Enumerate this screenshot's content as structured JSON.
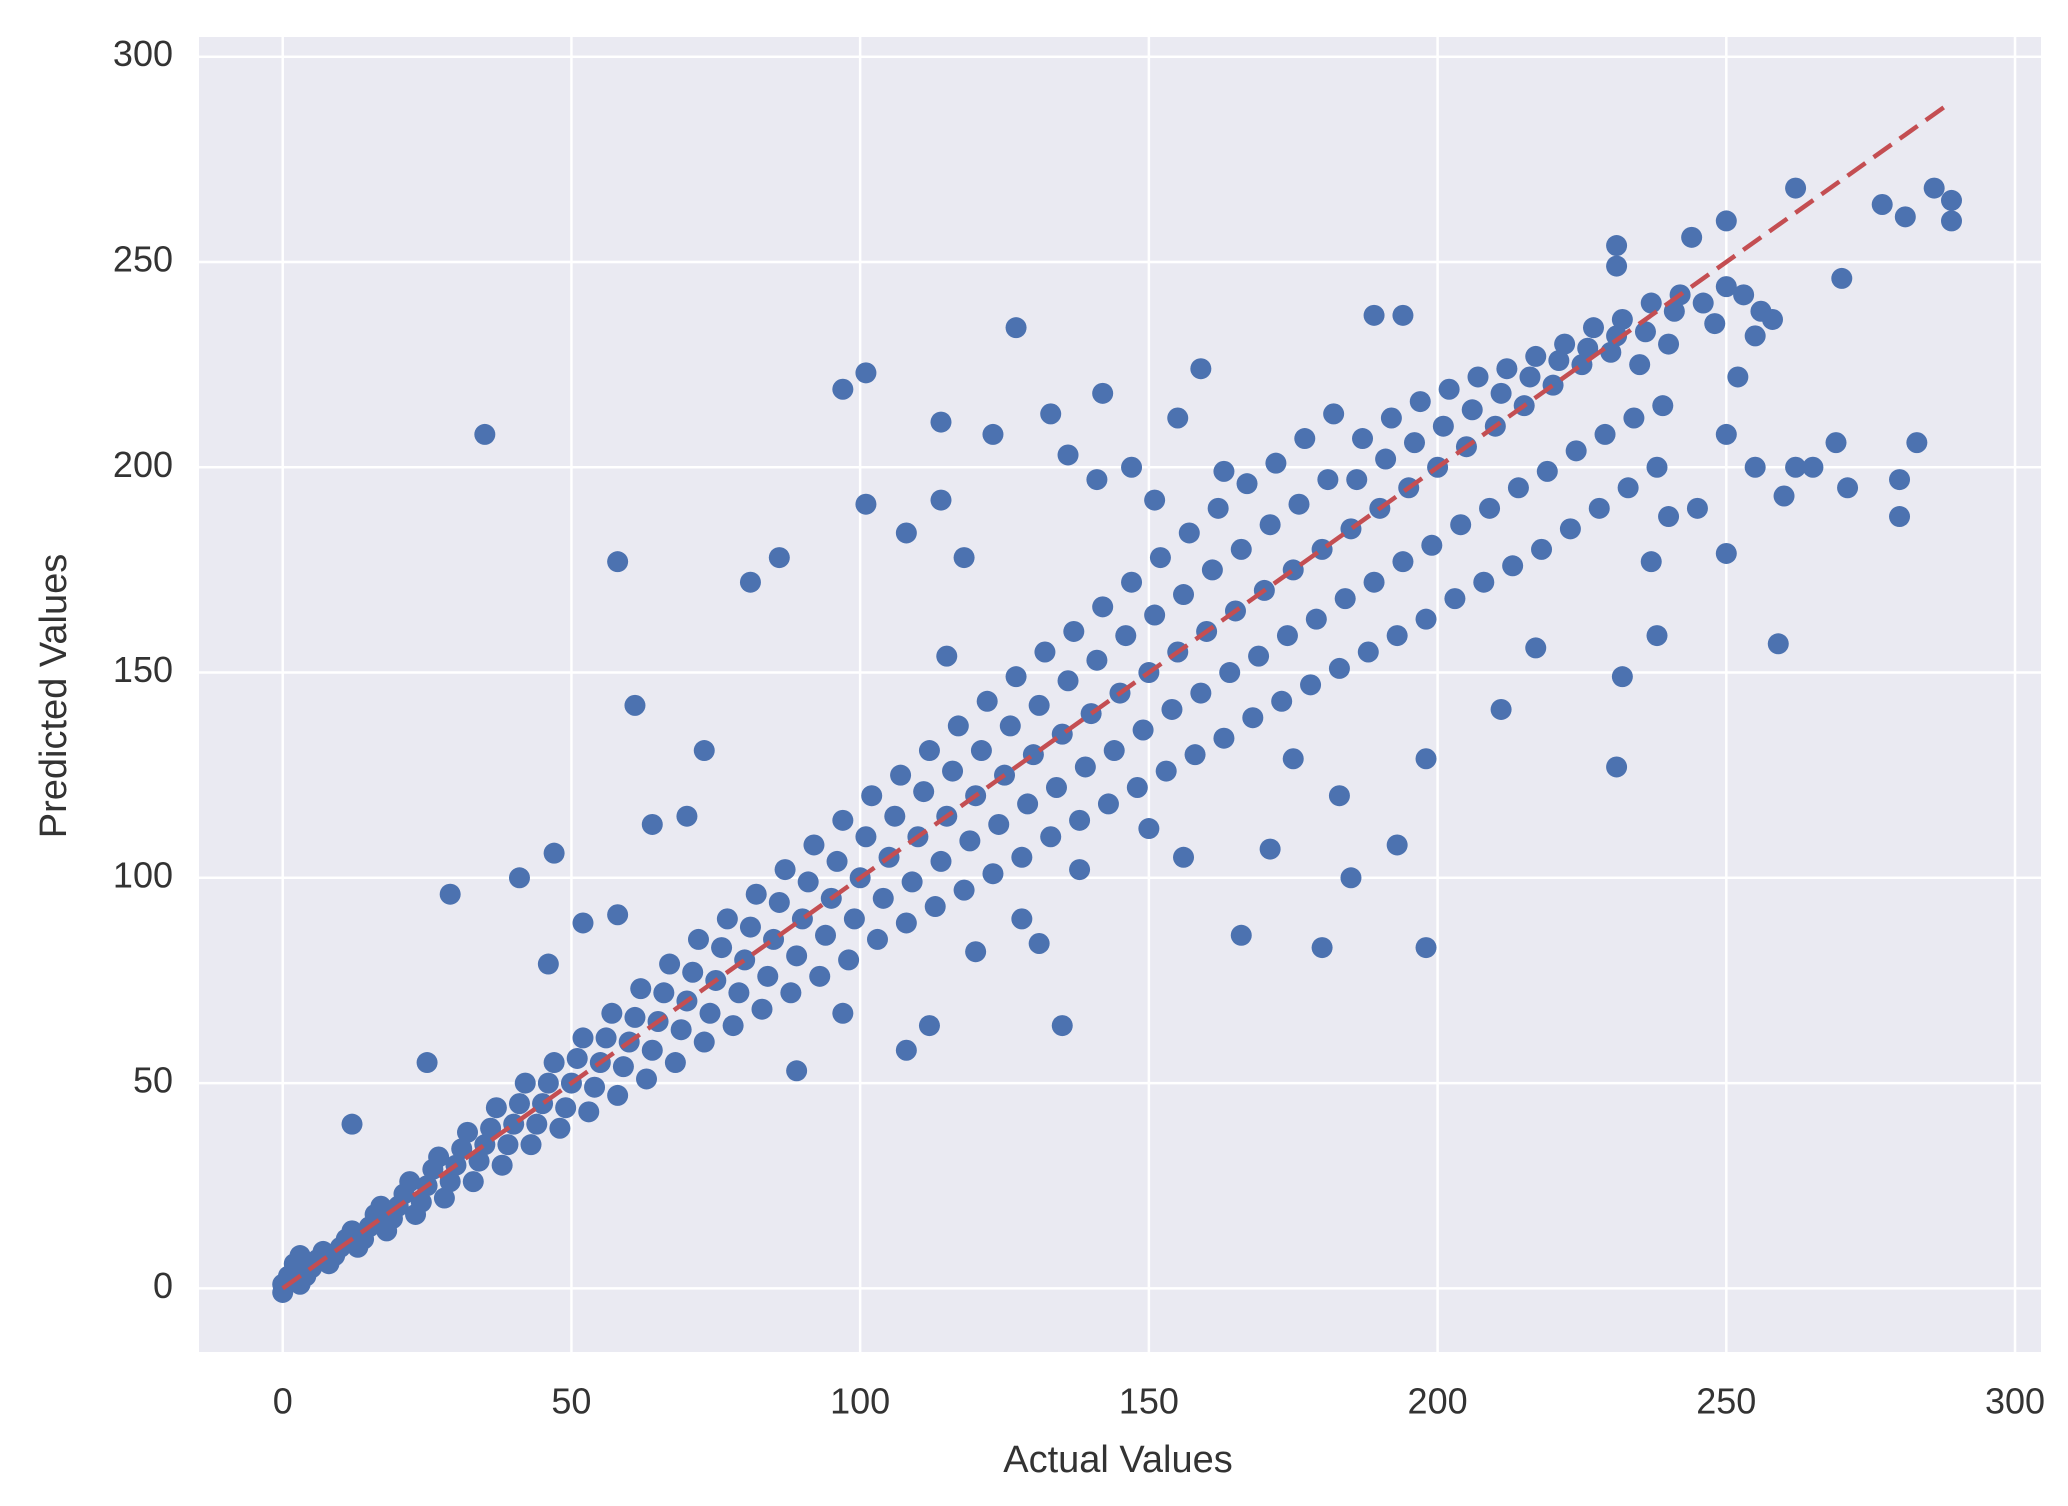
{
  "chart_data": {
    "type": "scatter",
    "xlabel": "Actual Values",
    "ylabel": "Predicted Values",
    "xlim": [
      -14.5,
      304.5
    ],
    "ylim": [
      -15.5,
      304.8
    ],
    "xticks": [
      0,
      50,
      100,
      150,
      200,
      250,
      300
    ],
    "yticks": [
      0,
      50,
      100,
      150,
      200,
      250,
      300
    ],
    "grid": true,
    "series": [
      {
        "color": "#4c72b0",
        "x": [
          0,
          1,
          0,
          2,
          3,
          3,
          4,
          5,
          6,
          7,
          8,
          9,
          10,
          11,
          12,
          13,
          14,
          15,
          16,
          17,
          18,
          19,
          20,
          21,
          22,
          23,
          24,
          25,
          26,
          27,
          28,
          29,
          30,
          31,
          32,
          33,
          34,
          35,
          36,
          37,
          38,
          39,
          40,
          41,
          42,
          43,
          44,
          45,
          46,
          47,
          48,
          49,
          50,
          51,
          52,
          53,
          54,
          55,
          56,
          57,
          58,
          59,
          60,
          61,
          62,
          63,
          64,
          65,
          66,
          67,
          68,
          69,
          70,
          71,
          72,
          73,
          74,
          75,
          76,
          77,
          78,
          79,
          80,
          81,
          82,
          83,
          84,
          85,
          86,
          87,
          88,
          89,
          90,
          91,
          92,
          93,
          94,
          95,
          96,
          97,
          98,
          99,
          100,
          101,
          102,
          103,
          104,
          105,
          106,
          107,
          108,
          109,
          110,
          111,
          112,
          113,
          114,
          115,
          116,
          117,
          118,
          119,
          120,
          121,
          122,
          123,
          124,
          125,
          126,
          127,
          128,
          129,
          130,
          131,
          132,
          133,
          134,
          135,
          136,
          137,
          138,
          139,
          140,
          141,
          142,
          143,
          144,
          145,
          146,
          147,
          148,
          149,
          150,
          151,
          152,
          153,
          154,
          155,
          156,
          157,
          158,
          159,
          160,
          161,
          162,
          163,
          164,
          165,
          166,
          167,
          168,
          169,
          170,
          171,
          172,
          173,
          174,
          175,
          176,
          177,
          178,
          179,
          180,
          181,
          182,
          183,
          184,
          185,
          186,
          187,
          188,
          189,
          190,
          191,
          192,
          193,
          194,
          195,
          196,
          197,
          198,
          199,
          200,
          201,
          202,
          203,
          204,
          205,
          206,
          207,
          208,
          209,
          210,
          211,
          212,
          213,
          214,
          215,
          216,
          217,
          218,
          219,
          220,
          221,
          222,
          223,
          224,
          225,
          226,
          227,
          228,
          229,
          230,
          231,
          232,
          233,
          234,
          235,
          236,
          237,
          238,
          239,
          240,
          241,
          242,
          246,
          250,
          253,
          256,
          258,
          255,
          248,
          252,
          250,
          255,
          262,
          265,
          260,
          245,
          240,
          35,
          58,
          61,
          29,
          41,
          47,
          73,
          86,
          81,
          97,
          101,
          101,
          127,
          114,
          123,
          133,
          142,
          159,
          189,
          194,
          231,
          231,
          244,
          250,
          262,
          277,
          286,
          289,
          289,
          281,
          270,
          283,
          280,
          280,
          271,
          269,
          259,
          250,
          231,
          232,
          238,
          237,
          211,
          217,
          198,
          198,
          180,
          166,
          185,
          193,
          135,
          131,
          108,
          112,
          89,
          171,
          156,
          150,
          183,
          175,
          138,
          128,
          120,
          97,
          70,
          64,
          52,
          58,
          46,
          25,
          12,
          118,
          115,
          108,
          136,
          141,
          147,
          151,
          163,
          155,
          114
        ],
        "y": [
          -1,
          3,
          1,
          6,
          8,
          1,
          3,
          5,
          7,
          9,
          6,
          8,
          10,
          12,
          14,
          10,
          12,
          15,
          18,
          20,
          14,
          17,
          20,
          23,
          26,
          18,
          21,
          25,
          29,
          32,
          22,
          26,
          30,
          34,
          38,
          26,
          31,
          35,
          39,
          44,
          30,
          35,
          40,
          45,
          50,
          35,
          40,
          45,
          50,
          55,
          39,
          44,
          50,
          56,
          61,
          43,
          49,
          55,
          61,
          67,
          47,
          54,
          60,
          66,
          73,
          51,
          58,
          65,
          72,
          79,
          55,
          63,
          70,
          77,
          85,
          60,
          67,
          75,
          83,
          90,
          64,
          72,
          80,
          88,
          96,
          68,
          76,
          85,
          94,
          102,
          72,
          81,
          90,
          99,
          108,
          76,
          86,
          95,
          104,
          114,
          80,
          90,
          100,
          110,
          120,
          85,
          95,
          105,
          115,
          125,
          89,
          99,
          110,
          121,
          131,
          93,
          104,
          115,
          126,
          137,
          97,
          109,
          120,
          131,
          143,
          101,
          113,
          125,
          137,
          149,
          105,
          118,
          130,
          142,
          155,
          110,
          122,
          135,
          148,
          160,
          114,
          127,
          140,
          153,
          166,
          118,
          131,
          145,
          159,
          172,
          122,
          136,
          150,
          164,
          178,
          126,
          141,
          155,
          169,
          184,
          130,
          145,
          160,
          175,
          190,
          134,
          150,
          165,
          180,
          196,
          139,
          154,
          170,
          186,
          201,
          143,
          159,
          175,
          191,
          207,
          147,
          163,
          180,
          197,
          213,
          151,
          168,
          185,
          197,
          207,
          155,
          172,
          190,
          202,
          212,
          159,
          177,
          195,
          206,
          216,
          163,
          181,
          200,
          210,
          219,
          168,
          186,
          205,
          214,
          222,
          172,
          190,
          210,
          218,
          224,
          176,
          195,
          215,
          222,
          227,
          180,
          199,
          220,
          226,
          230,
          185,
          204,
          225,
          229,
          234,
          190,
          208,
          228,
          232,
          236,
          195,
          212,
          225,
          233,
          240,
          200,
          215,
          230,
          238,
          242,
          240,
          244,
          242,
          238,
          236,
          232,
          235,
          222,
          208,
          200,
          200,
          200,
          193,
          190,
          188,
          208,
          177,
          142,
          96,
          100,
          106,
          131,
          178,
          172,
          219,
          223,
          191,
          234,
          211,
          208,
          213,
          218,
          224,
          237,
          237,
          254,
          249,
          256,
          260,
          268,
          264,
          268,
          265,
          260,
          261,
          246,
          206,
          197,
          188,
          195,
          206,
          157,
          179,
          127,
          149,
          159,
          177,
          141,
          156,
          129,
          83,
          83,
          86,
          100,
          108,
          64,
          84,
          58,
          64,
          53,
          107,
          105,
          112,
          120,
          129,
          102,
          90,
          82,
          67,
          115,
          113,
          89,
          91,
          79,
          55,
          40,
          178,
          154,
          184,
          203,
          197,
          200,
          192,
          199,
          212,
          192
        ]
      }
    ],
    "lines": [
      {
        "x": [
          0,
          289
        ],
        "y": [
          0,
          289
        ],
        "color": "#c44e52",
        "style": "dashed"
      }
    ]
  }
}
